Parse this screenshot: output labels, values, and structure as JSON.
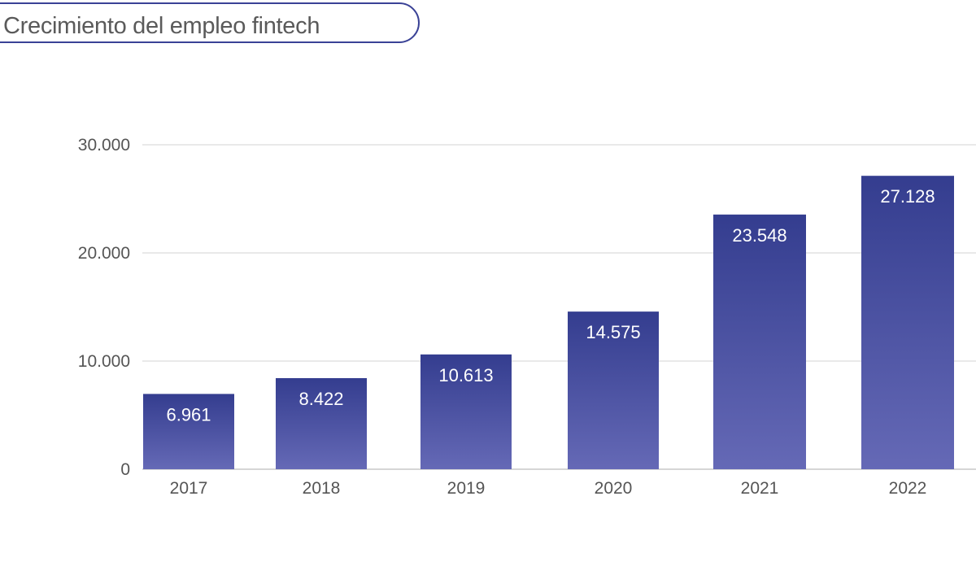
{
  "title": "Crecimiento del empleo fintech",
  "colors": {
    "bar_top": "#343d8f",
    "bar_bottom": "#6569b6",
    "title_border": "#3a4296",
    "grid": "#dcdcdc"
  },
  "chart_data": {
    "type": "bar",
    "title": "Crecimiento del empleo fintech",
    "categories": [
      "2017",
      "2018",
      "2019",
      "2020",
      "2021",
      "2022"
    ],
    "values": [
      6961,
      8422,
      10613,
      14575,
      23548,
      27128
    ],
    "value_labels": [
      "6.961",
      "8.422",
      "10.613",
      "14.575",
      "23.548",
      "27.128"
    ],
    "yticks": [
      0,
      10000,
      20000,
      30000
    ],
    "ytick_labels": [
      "0",
      "10.000",
      "20.000",
      "30.000"
    ],
    "ylim": [
      0,
      30000
    ],
    "xlabel": "",
    "ylabel": "",
    "grid": true,
    "legend": "none"
  }
}
